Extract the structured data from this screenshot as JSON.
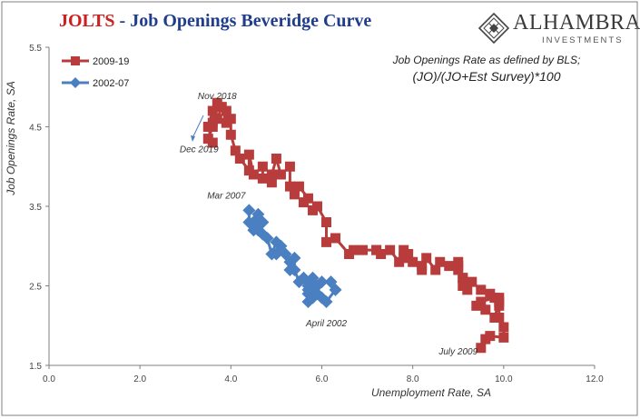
{
  "header": {
    "title_part1": "JOLTS",
    "title_part2": " - Job Openings Beveridge Curve"
  },
  "logo": {
    "name": "ALHAMBRA",
    "sub": "INVESTMENTS"
  },
  "colors": {
    "series_2009_19": "#b83c3c",
    "series_2002_07": "#4a7fc1",
    "title_red": "#cc1f1f",
    "title_blue": "#1f3d8a",
    "frame": "#7f7f7f"
  },
  "chart_data": {
    "type": "line",
    "title": "JOLTS - Job Openings Beveridge Curve",
    "xlabel": "Unemployment Rate, SA",
    "ylabel": "Job Openings Rate, SA",
    "xlim": [
      0,
      12
    ],
    "ylim": [
      1.5,
      5.5
    ],
    "x_ticks": [
      "0.0",
      "2.0",
      "4.0",
      "6.0",
      "8.0",
      "10.0",
      "12.0"
    ],
    "y_ticks": [
      "1.5",
      "2.5",
      "3.5",
      "4.5",
      "5.5"
    ],
    "grid": false,
    "legend_position": "top-left",
    "note_line1": "Job Openings Rate as defined by BLS;",
    "note_line2": "(JO)/(JO+Est Survey)*100",
    "annotations": [
      {
        "text": "Nov 2018",
        "x": 3.7,
        "y": 4.85
      },
      {
        "text": "Dec 2019",
        "x": 3.3,
        "y": 4.18
      },
      {
        "text": "Mar 2007",
        "x": 3.9,
        "y": 3.6
      },
      {
        "text": "April 2002",
        "x": 6.1,
        "y": 1.99
      },
      {
        "text": "July 2009",
        "x": 9.0,
        "y": 1.64
      }
    ],
    "series": [
      {
        "name": "2009-19",
        "marker": "square",
        "x": [
          9.5,
          9.6,
          9.7,
          10.0,
          10.0,
          9.9,
          9.9,
          9.9,
          9.8,
          9.5,
          9.4,
          9.6,
          9.8,
          9.9,
          9.7,
          9.5,
          9.3,
          9.1,
          9.1,
          9.2,
          9.1,
          9.0,
          9.0,
          9.0,
          8.8,
          8.6,
          8.5,
          8.3,
          8.2,
          8.2,
          8.0,
          7.8,
          7.8,
          7.9,
          7.7,
          7.5,
          7.3,
          7.2,
          7.2,
          6.9,
          6.7,
          6.6,
          6.3,
          6.1,
          6.1,
          5.9,
          5.8,
          5.6,
          5.7,
          5.5,
          5.4,
          5.3,
          5.3,
          5.1,
          5.0,
          4.9,
          4.9,
          4.7,
          4.7,
          4.5,
          4.4,
          4.4,
          4.2,
          4.1,
          4.0,
          4.0,
          3.9,
          3.9,
          3.8,
          3.7,
          3.6,
          3.5,
          3.6,
          3.7,
          3.6,
          3.5,
          3.6
        ],
        "y": [
          1.72,
          1.83,
          1.87,
          1.85,
          1.98,
          2.1,
          2.25,
          2.35,
          2.35,
          2.3,
          2.25,
          2.2,
          2.1,
          2.3,
          2.4,
          2.45,
          2.55,
          2.6,
          2.5,
          2.45,
          2.6,
          2.7,
          2.75,
          2.8,
          2.75,
          2.8,
          2.7,
          2.85,
          2.75,
          2.7,
          2.8,
          2.85,
          2.95,
          2.9,
          2.8,
          2.95,
          2.9,
          2.95,
          2.95,
          2.95,
          2.95,
          2.9,
          3.1,
          3.05,
          3.3,
          3.5,
          3.45,
          3.55,
          3.6,
          3.75,
          3.65,
          3.75,
          4.0,
          3.9,
          4.1,
          3.9,
          3.8,
          3.85,
          4.0,
          3.9,
          4.15,
          3.95,
          4.1,
          4.2,
          4.4,
          4.6,
          4.7,
          4.55,
          4.75,
          4.6,
          4.5,
          4.35,
          4.55,
          4.8,
          4.7,
          4.5,
          4.3
        ]
      },
      {
        "name": "2002-07",
        "marker": "diamond",
        "x": [
          5.8,
          5.7,
          5.8,
          5.7,
          5.7,
          5.9,
          6.0,
          6.1,
          6.3,
          6.2,
          6.0,
          5.9,
          5.8,
          5.7,
          5.6,
          5.5,
          5.4,
          5.4,
          5.3,
          5.3,
          5.2,
          5.0,
          5.1,
          5.0,
          4.9,
          4.8,
          4.7,
          4.6,
          4.6,
          4.5,
          4.5,
          4.7,
          4.6,
          4.5,
          4.4,
          4.4
        ],
        "y": [
          2.35,
          2.45,
          2.5,
          2.4,
          2.3,
          2.4,
          2.35,
          2.3,
          2.45,
          2.55,
          2.55,
          2.5,
          2.6,
          2.5,
          2.6,
          2.55,
          2.7,
          2.85,
          2.8,
          2.7,
          2.9,
          2.9,
          3.0,
          3.05,
          2.9,
          3.1,
          3.15,
          3.2,
          3.35,
          3.3,
          3.2,
          3.3,
          3.4,
          3.3,
          3.3,
          3.45
        ]
      }
    ]
  }
}
